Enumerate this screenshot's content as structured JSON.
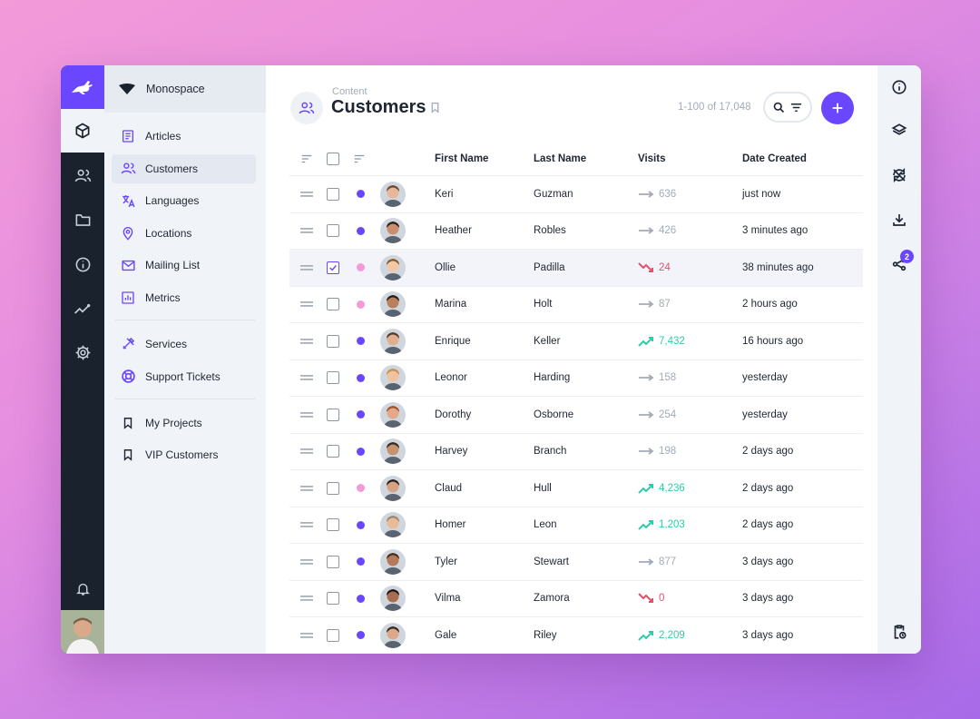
{
  "project": {
    "name": "Monospace"
  },
  "nav": {
    "collections": [
      {
        "label": "Articles",
        "icon": "article-icon"
      },
      {
        "label": "Customers",
        "icon": "users-icon",
        "active": true
      },
      {
        "label": "Languages",
        "icon": "translate-icon"
      },
      {
        "label": "Locations",
        "icon": "pin-icon"
      },
      {
        "label": "Mailing List",
        "icon": "mail-icon"
      },
      {
        "label": "Metrics",
        "icon": "chart-icon"
      }
    ],
    "support": [
      {
        "label": "Services",
        "icon": "tools-icon"
      },
      {
        "label": "Support Tickets",
        "icon": "lifebuoy-icon"
      }
    ],
    "bookmarks": [
      {
        "label": "My Projects",
        "icon": "bookmark-icon"
      },
      {
        "label": "VIP Customers",
        "icon": "bookmark-icon"
      }
    ]
  },
  "header": {
    "breadcrumb": "Content",
    "title": "Customers",
    "count": "1-100 of 17,048"
  },
  "table": {
    "columns": [
      "First Name",
      "Last Name",
      "Visits",
      "Date Created"
    ],
    "rows": [
      {
        "first": "Keri",
        "last": "Guzman",
        "visits": "636",
        "trend": "flat",
        "date": "just now",
        "status": "purple",
        "checked": false
      },
      {
        "first": "Heather",
        "last": "Robles",
        "visits": "426",
        "trend": "flat",
        "date": "3 minutes ago",
        "status": "purple",
        "checked": false
      },
      {
        "first": "Ollie",
        "last": "Padilla",
        "visits": "24",
        "trend": "down",
        "date": "38 minutes ago",
        "status": "pink",
        "checked": true
      },
      {
        "first": "Marina",
        "last": "Holt",
        "visits": "87",
        "trend": "flat",
        "date": "2 hours ago",
        "status": "pink",
        "checked": false
      },
      {
        "first": "Enrique",
        "last": "Keller",
        "visits": "7,432",
        "trend": "up",
        "date": "16 hours ago",
        "status": "purple",
        "checked": false
      },
      {
        "first": "Leonor",
        "last": "Harding",
        "visits": "158",
        "trend": "flat",
        "date": "yesterday",
        "status": "purple",
        "checked": false
      },
      {
        "first": "Dorothy",
        "last": "Osborne",
        "visits": "254",
        "trend": "flat",
        "date": "yesterday",
        "status": "purple",
        "checked": false
      },
      {
        "first": "Harvey",
        "last": "Branch",
        "visits": "198",
        "trend": "flat",
        "date": "2 days ago",
        "status": "purple",
        "checked": false
      },
      {
        "first": "Claud",
        "last": "Hull",
        "visits": "4,236",
        "trend": "up",
        "date": "2 days ago",
        "status": "pink",
        "checked": false
      },
      {
        "first": "Homer",
        "last": "Leon",
        "visits": "1,203",
        "trend": "up",
        "date": "2 days ago",
        "status": "purple",
        "checked": false
      },
      {
        "first": "Tyler",
        "last": "Stewart",
        "visits": "877",
        "trend": "flat",
        "date": "3 days ago",
        "status": "purple",
        "checked": false
      },
      {
        "first": "Vilma",
        "last": "Zamora",
        "visits": "0",
        "trend": "down",
        "date": "3 days ago",
        "status": "purple",
        "checked": false
      },
      {
        "first": "Gale",
        "last": "Riley",
        "visits": "2,209",
        "trend": "up",
        "date": "3 days ago",
        "status": "purple",
        "checked": false
      }
    ]
  },
  "sidebar": {
    "share_badge": "2"
  },
  "colors": {
    "accent": "#6b46ff",
    "rail": "#1a222e",
    "status_purple": "#6b46ff",
    "status_pink": "#f59ad8",
    "trend_up": "#2ecda7",
    "trend_down": "#e35169",
    "trend_flat": "#a2abb8"
  }
}
